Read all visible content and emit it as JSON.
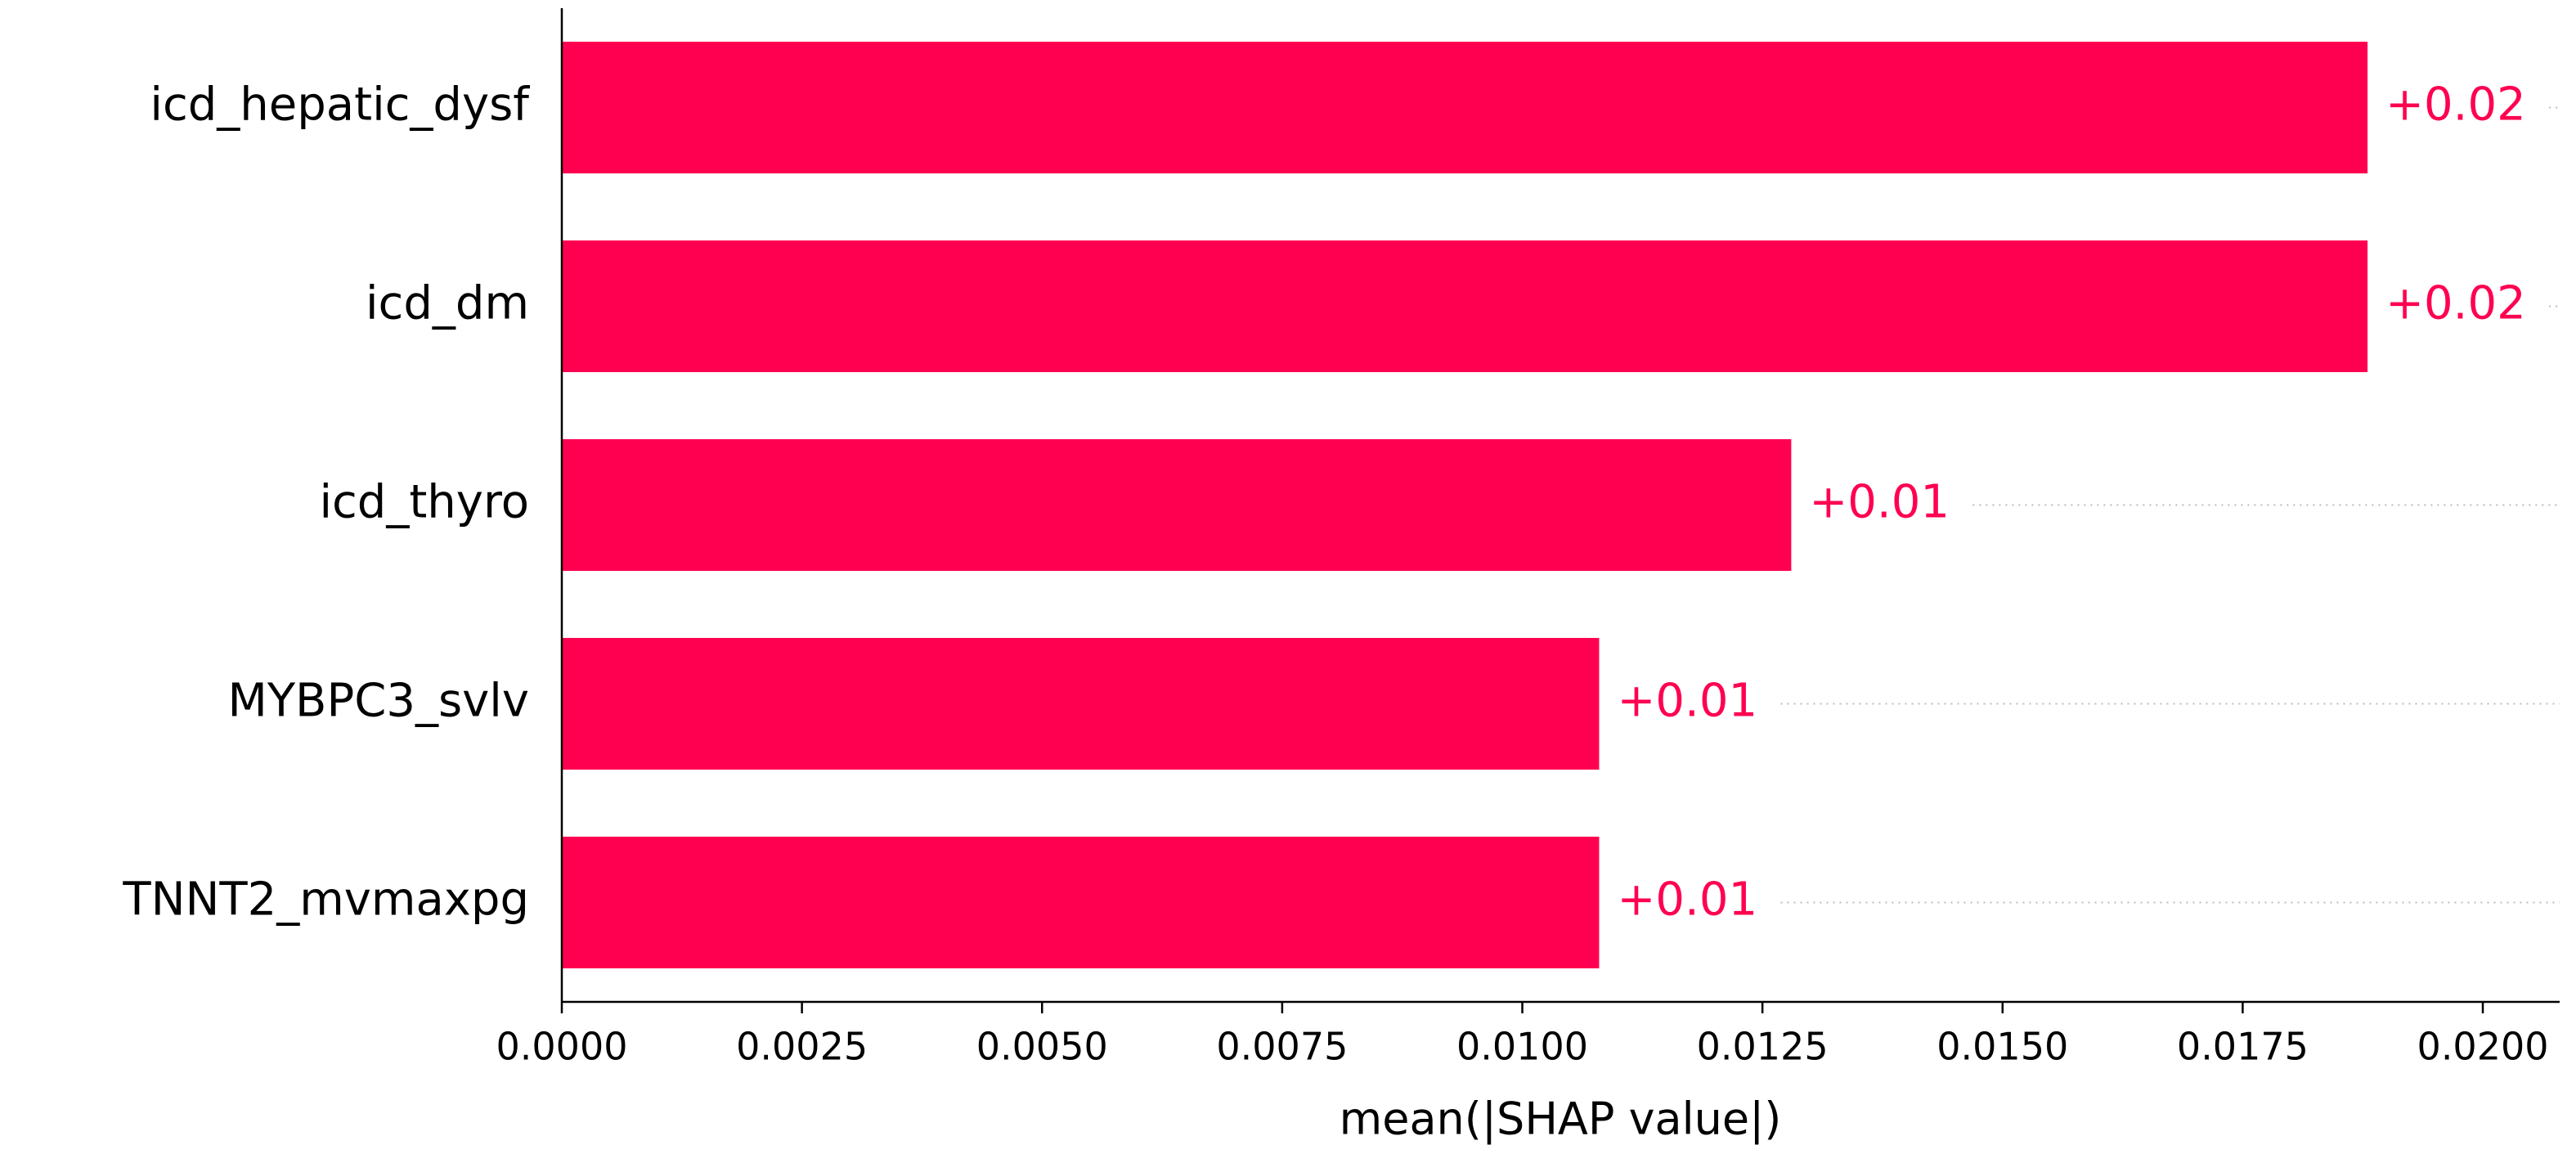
{
  "chart_data": {
    "type": "barh",
    "xlabel": "mean(|SHAP value|)",
    "categories": [
      "icd_hepatic_dysf",
      "icd_dm",
      "icd_thyro",
      "MYBPC3_svlv",
      "TNNT2_mvmaxpg"
    ],
    "values": [
      0.0188,
      0.0188,
      0.0128,
      0.0108,
      0.0108
    ],
    "value_labels": [
      "+0.02",
      "+0.02",
      "+0.01",
      "+0.01",
      "+0.01"
    ],
    "color": "#ff0051",
    "xlim": [
      0,
      0.0208
    ],
    "xticks": [
      {
        "value": 0,
        "label": "0.0000"
      },
      {
        "value": 0.0025,
        "label": "0.0025"
      },
      {
        "value": 0.005,
        "label": "0.0050"
      },
      {
        "value": 0.0075,
        "label": "0.0075"
      },
      {
        "value": 0.01,
        "label": "0.0100"
      },
      {
        "value": 0.0125,
        "label": "0.0125"
      },
      {
        "value": 0.015,
        "label": "0.0150"
      },
      {
        "value": 0.0175,
        "label": "0.0175"
      },
      {
        "value": 0.02,
        "label": "0.0200"
      }
    ]
  }
}
